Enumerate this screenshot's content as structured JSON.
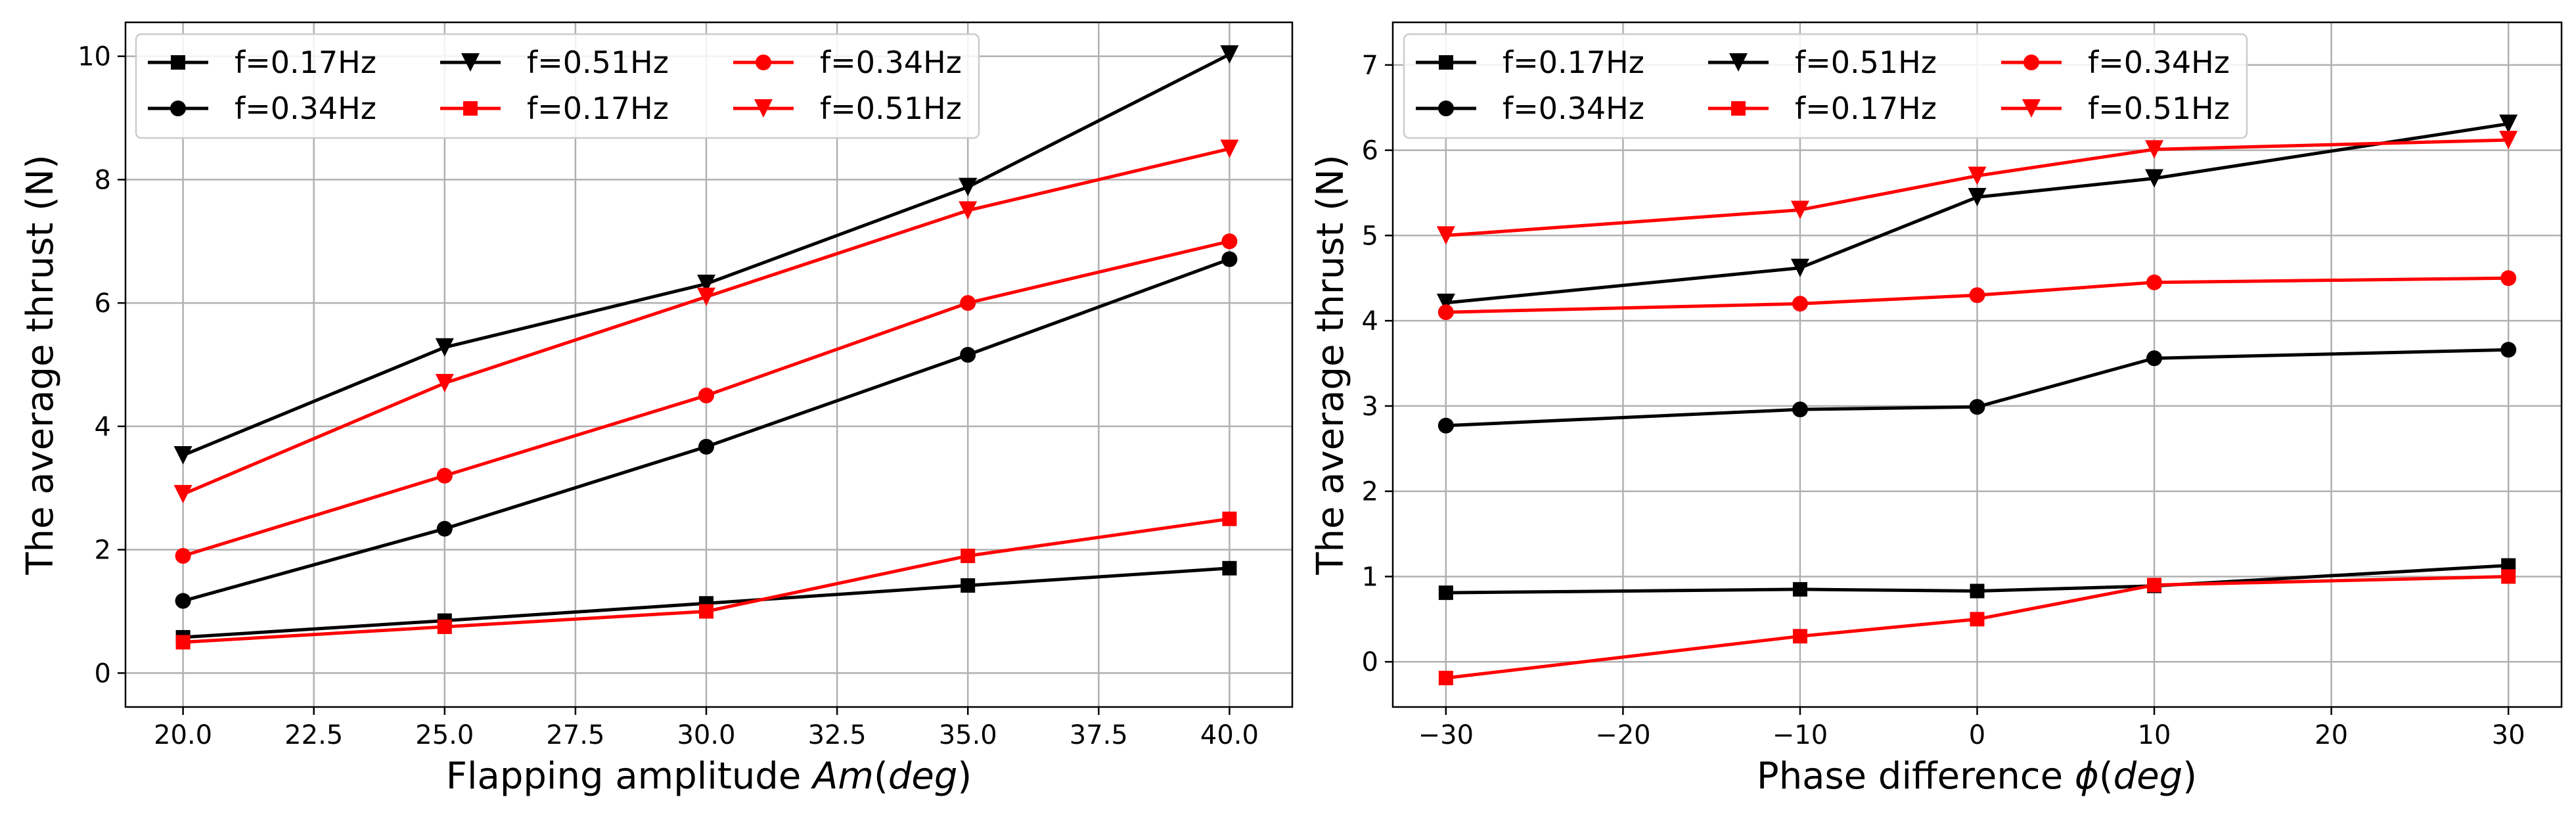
{
  "colors": {
    "black": "#000000",
    "red": "#ff0000",
    "grid": "#b0b0b0"
  },
  "chart_data": [
    {
      "type": "line",
      "xlabel_prefix": "Flapping amplitude ",
      "xlabel_var": "Am",
      "xlabel_unit_open": "(",
      "xlabel_unit": "deg",
      "xlabel_unit_close": ")",
      "ylabel": "The average thrust (N)",
      "xlim": [
        18.9,
        41.2
      ],
      "ylim": [
        -0.55,
        10.55
      ],
      "xticks": [
        20,
        22.5,
        25,
        27.5,
        30,
        32.5,
        35,
        37.5,
        40
      ],
      "xtick_labels": [
        "20.0",
        "22.5",
        "25.0",
        "27.5",
        "30.0",
        "32.5",
        "35.0",
        "37.5",
        "40.0"
      ],
      "yticks": [
        0,
        2,
        4,
        6,
        8,
        10
      ],
      "ytick_labels": [
        "0",
        "2",
        "4",
        "6",
        "8",
        "10"
      ],
      "grid": true,
      "legend_position": "top-left",
      "x": [
        20,
        25,
        30,
        35,
        40
      ],
      "series": [
        {
          "name": "f=0.17Hz",
          "color": "#000000",
          "marker": "square",
          "values": [
            0.58,
            0.85,
            1.13,
            1.42,
            1.7
          ]
        },
        {
          "name": "f=0.34Hz",
          "color": "#000000",
          "marker": "circle",
          "values": [
            1.17,
            2.34,
            3.67,
            5.16,
            6.71
          ]
        },
        {
          "name": "f=0.51Hz",
          "color": "#000000",
          "marker": "triangle-down",
          "values": [
            3.53,
            5.28,
            6.31,
            7.88,
            10.03
          ]
        },
        {
          "name": "f=0.17Hz",
          "color": "#ff0000",
          "marker": "square",
          "values": [
            0.5,
            0.75,
            1.0,
            1.9,
            2.5
          ]
        },
        {
          "name": "f=0.34Hz",
          "color": "#ff0000",
          "marker": "circle",
          "values": [
            1.9,
            3.2,
            4.5,
            6.0,
            7.0
          ]
        },
        {
          "name": "f=0.51Hz",
          "color": "#ff0000",
          "marker": "triangle-down",
          "values": [
            2.9,
            4.7,
            6.1,
            7.5,
            8.5
          ]
        }
      ]
    },
    {
      "type": "line",
      "xlabel_prefix": "Phase difference ",
      "xlabel_var": "ϕ",
      "xlabel_unit_open": "(",
      "xlabel_unit": "deg",
      "xlabel_unit_close": ")",
      "ylabel": "The average thrust (N)",
      "xlim": [
        -33,
        33
      ],
      "ylim": [
        -0.53,
        7.5
      ],
      "xticks": [
        -30,
        -20,
        -10,
        0,
        10,
        20,
        30
      ],
      "xtick_labels": [
        "−30",
        "−20",
        "−10",
        "0",
        "10",
        "20",
        "30"
      ],
      "yticks": [
        0,
        1,
        2,
        3,
        4,
        5,
        6,
        7
      ],
      "ytick_labels": [
        "0",
        "1",
        "2",
        "3",
        "4",
        "5",
        "6",
        "7"
      ],
      "grid": true,
      "legend_position": "top-left",
      "x": [
        -30,
        -10,
        0,
        10,
        30
      ],
      "series": [
        {
          "name": "f=0.17Hz",
          "color": "#000000",
          "marker": "square",
          "values": [
            0.81,
            0.85,
            0.83,
            0.89,
            1.13
          ]
        },
        {
          "name": "f=0.34Hz",
          "color": "#000000",
          "marker": "circle",
          "values": [
            2.77,
            2.96,
            2.99,
            3.56,
            3.66
          ]
        },
        {
          "name": "f=0.51Hz",
          "color": "#000000",
          "marker": "triangle-down",
          "values": [
            4.21,
            4.62,
            5.45,
            5.67,
            6.31
          ]
        },
        {
          "name": "f=0.17Hz",
          "color": "#ff0000",
          "marker": "square",
          "values": [
            -0.19,
            0.3,
            0.5,
            0.9,
            1.0
          ]
        },
        {
          "name": "f=0.34Hz",
          "color": "#ff0000",
          "marker": "circle",
          "values": [
            4.1,
            4.2,
            4.3,
            4.45,
            4.5
          ]
        },
        {
          "name": "f=0.51Hz",
          "color": "#ff0000",
          "marker": "triangle-down",
          "values": [
            5.0,
            5.3,
            5.7,
            6.01,
            6.12
          ]
        }
      ]
    }
  ]
}
